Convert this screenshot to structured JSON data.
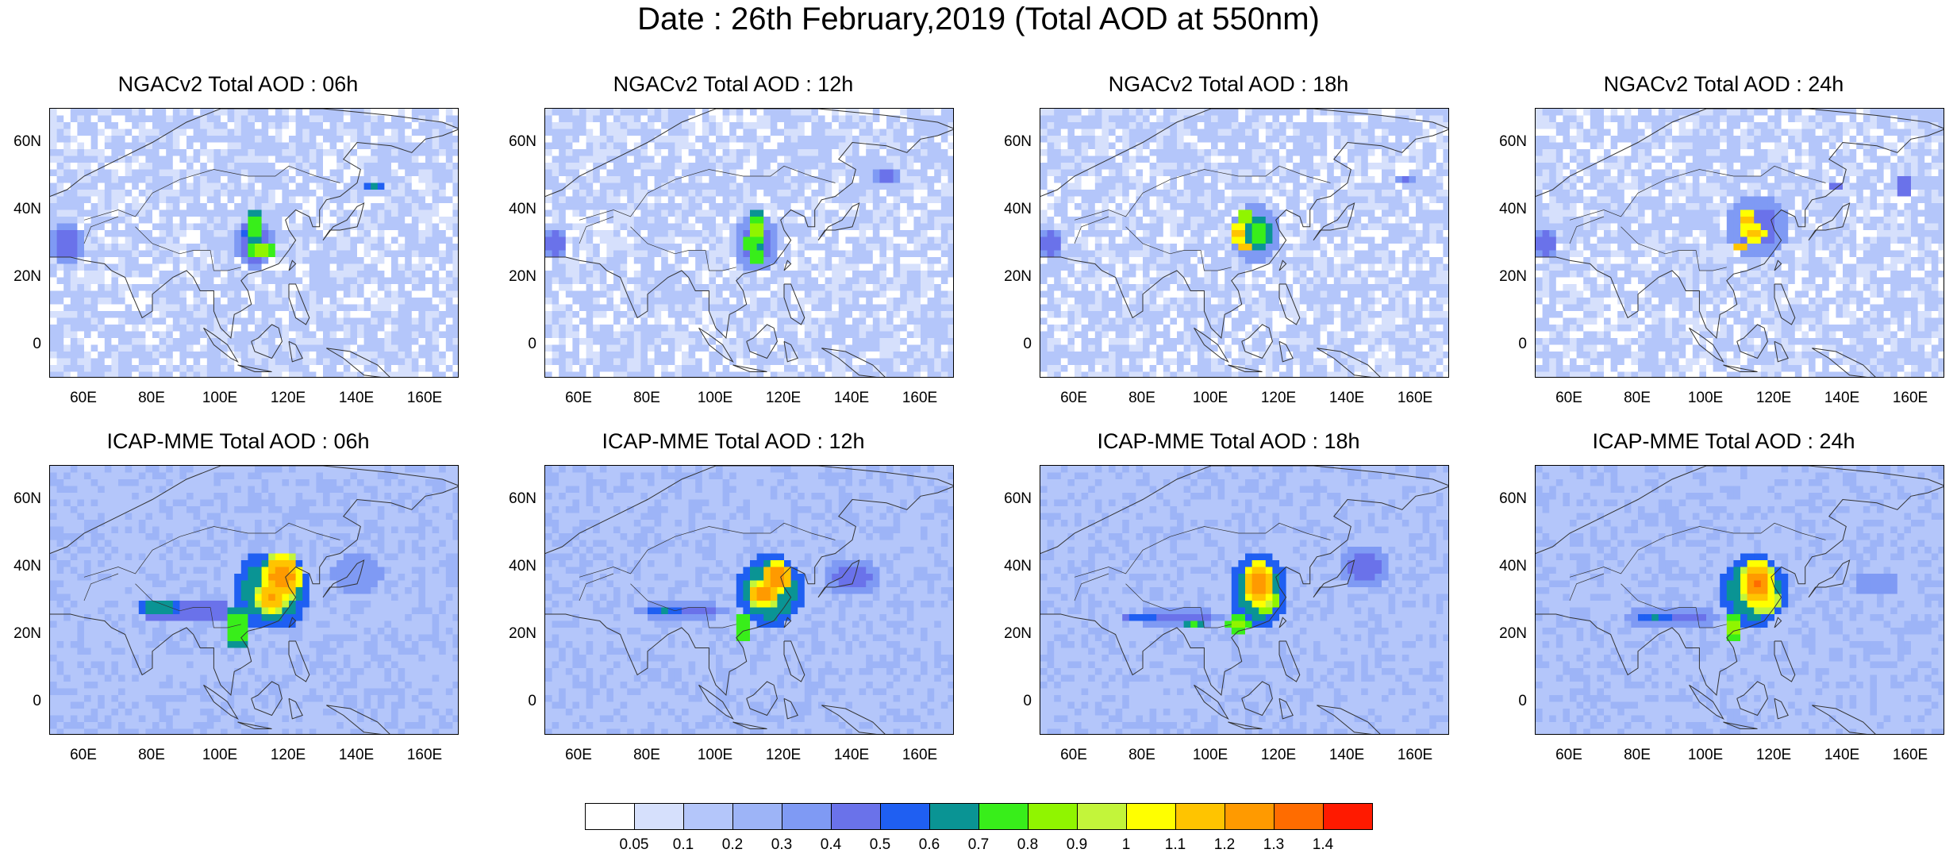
{
  "title": "Date : 26th February,2019 (Total AOD at 550nm)",
  "panels": [
    {
      "title": "NGACv2 Total AOD : 06h",
      "model": "NGACv2",
      "hour": "06h"
    },
    {
      "title": "NGACv2 Total AOD : 12h",
      "model": "NGACv2",
      "hour": "12h"
    },
    {
      "title": "NGACv2 Total AOD : 18h",
      "model": "NGACv2",
      "hour": "18h"
    },
    {
      "title": "NGACv2 Total AOD : 24h",
      "model": "NGACv2",
      "hour": "24h"
    },
    {
      "title": "ICAP-MME Total AOD : 06h",
      "model": "ICAP-MME",
      "hour": "06h"
    },
    {
      "title": "ICAP-MME Total AOD : 12h",
      "model": "ICAP-MME",
      "hour": "12h"
    },
    {
      "title": "ICAP-MME Total AOD : 18h",
      "model": "ICAP-MME",
      "hour": "18h"
    },
    {
      "title": "ICAP-MME Total AOD : 24h",
      "model": "ICAP-MME",
      "hour": "24h"
    }
  ],
  "map": {
    "lon_range": [
      50,
      170
    ],
    "lat_range": [
      -10,
      70
    ],
    "lat_labels": [
      "60N",
      "40N",
      "20N",
      "0"
    ],
    "lon_labels": [
      "60E",
      "80E",
      "100E",
      "120E",
      "140E",
      "160E"
    ]
  },
  "colorbar": {
    "labels": [
      "0.05",
      "0.1",
      "0.2",
      "0.3",
      "0.4",
      "0.5",
      "0.6",
      "0.7",
      "0.8",
      "0.9",
      "1",
      "1.1",
      "1.2",
      "1.3",
      "1.4"
    ],
    "colors": [
      "#ffffff",
      "#d6e0fc",
      "#b4c6fa",
      "#9db4f7",
      "#7f9af4",
      "#6a72ea",
      "#1f5ff2",
      "#0a9494",
      "#38ee1a",
      "#90f500",
      "#c3f53a",
      "#ffff00",
      "#ffc400",
      "#ff9a00",
      "#ff6c00",
      "#ff1a00"
    ]
  }
}
